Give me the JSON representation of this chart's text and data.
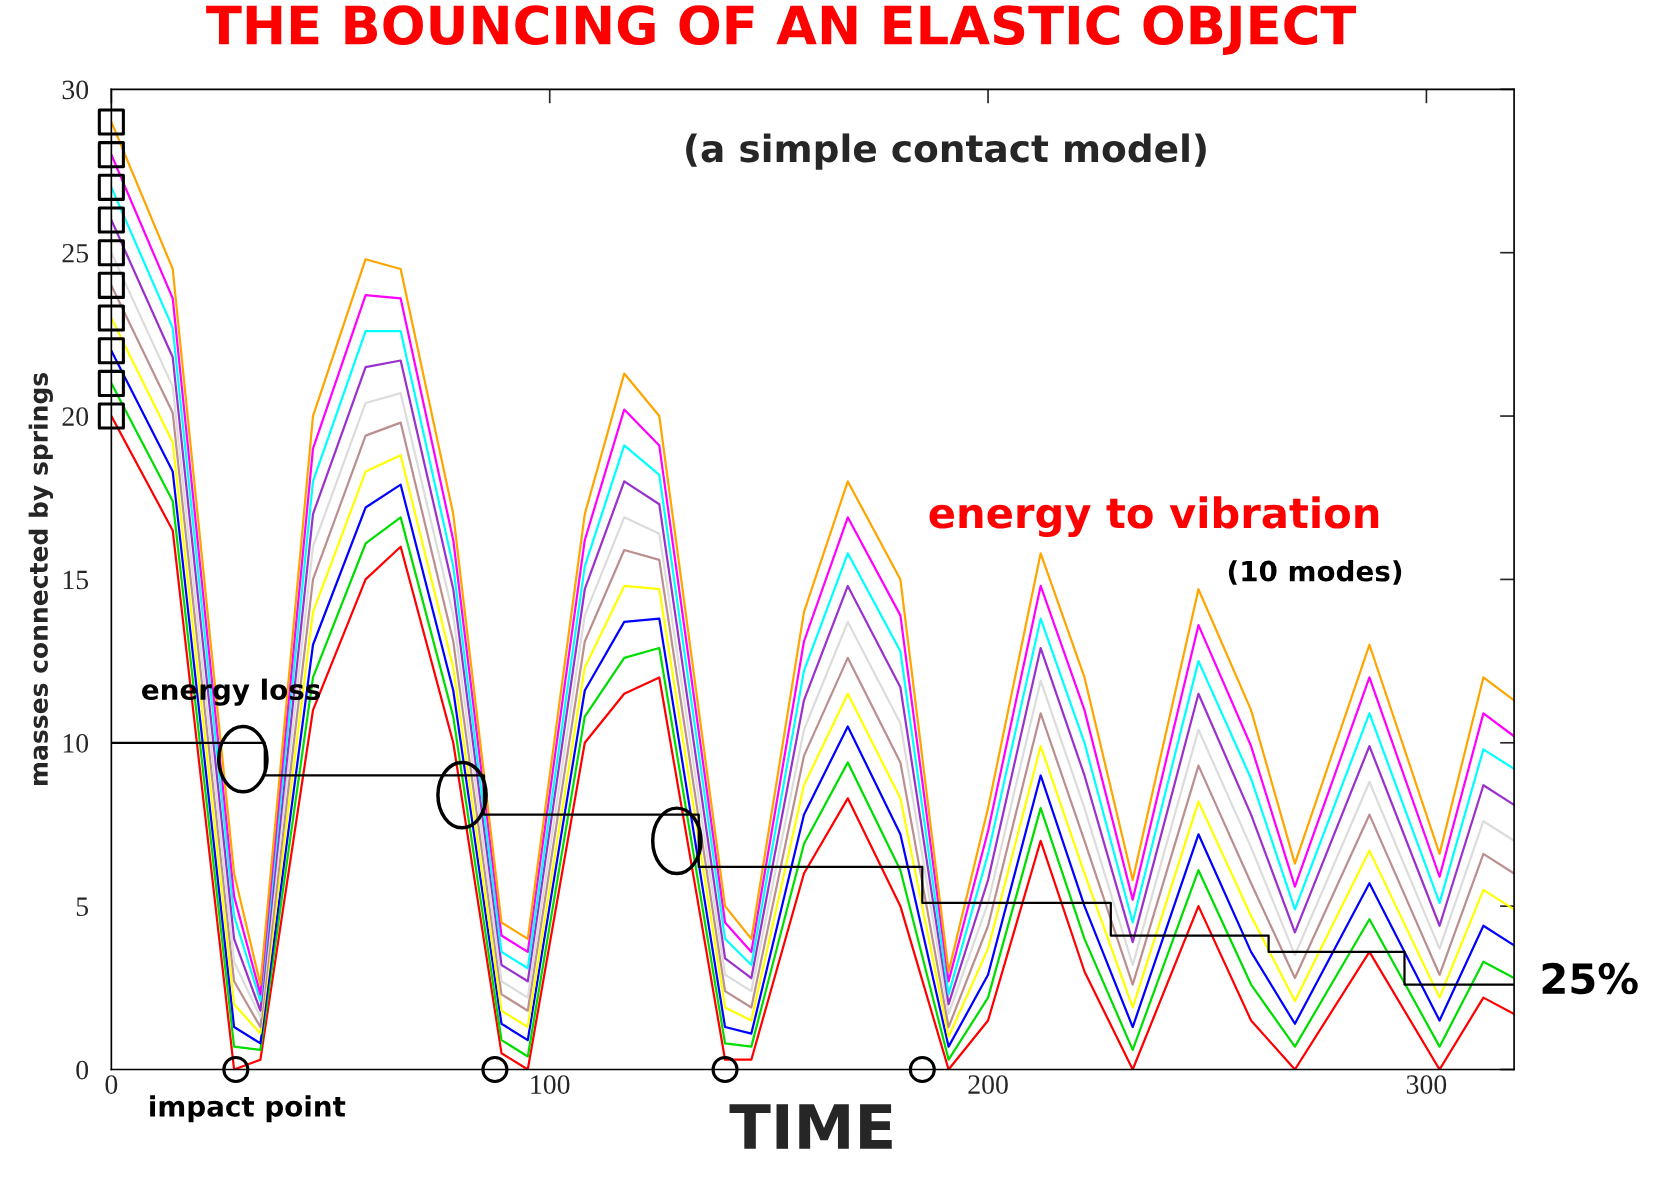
{
  "chart_data": {
    "type": "line",
    "title": "THE BOUNCING OF AN ELASTIC OBJECT",
    "subtitle": "(a simple contact model)",
    "xlabel": "TIME",
    "ylabel": "masses connected by springs",
    "annotations": [
      "energy loss",
      "energy to vibration",
      "(10 modes)",
      "25%",
      "impact point"
    ],
    "x": [
      0,
      14,
      28,
      34,
      46,
      58,
      66,
      78,
      89,
      95,
      108,
      117,
      125,
      140,
      146,
      158,
      168,
      180,
      191,
      200,
      212,
      222,
      233,
      248,
      260,
      270,
      287,
      303,
      313,
      320
    ],
    "xlim": [
      0,
      320
    ],
    "ylim": [
      0,
      30
    ],
    "xticks": [
      0,
      100,
      200,
      300
    ],
    "yticks": [
      0,
      5,
      10,
      15,
      20,
      25,
      30
    ],
    "grid": false,
    "legend": false,
    "series": [
      {
        "color": "#ff0000",
        "values": [
          20,
          16.5,
          0,
          0.3,
          11,
          15,
          16,
          10,
          0.5,
          0,
          10,
          11.5,
          12,
          0.3,
          0.3,
          6,
          8.3,
          5,
          0,
          1.5,
          7,
          3,
          0,
          5,
          1.5,
          0,
          3.6,
          0,
          2.2,
          1.7
        ]
      },
      {
        "color": "#00dd00",
        "values": [
          21,
          17.4,
          0.7,
          0.6,
          12,
          16.1,
          16.9,
          10.8,
          0.9,
          0.4,
          10.8,
          12.6,
          12.9,
          0.8,
          0.7,
          6.9,
          9.4,
          6.1,
          0.3,
          2.2,
          8,
          4,
          0.6,
          6.1,
          2.6,
          0.7,
          4.6,
          0.7,
          3.3,
          2.8
        ]
      },
      {
        "color": "#0000ff",
        "values": [
          22,
          18.3,
          1.3,
          0.8,
          13,
          17.2,
          17.9,
          11.6,
          1.4,
          0.9,
          11.6,
          13.7,
          13.8,
          1.3,
          1.1,
          7.8,
          10.5,
          7.2,
          0.7,
          2.9,
          9,
          5,
          1.3,
          7.2,
          3.6,
          1.4,
          5.7,
          1.5,
          4.4,
          3.8
        ]
      },
      {
        "color": "#ffff00",
        "values": [
          23,
          19.2,
          2.0,
          1.1,
          14,
          18.3,
          18.8,
          12.3,
          1.8,
          1.3,
          12.3,
          14.8,
          14.7,
          1.9,
          1.5,
          8.7,
          11.5,
          8.3,
          1,
          3.7,
          9.9,
          6,
          1.9,
          8.2,
          4.7,
          2.1,
          6.7,
          2.2,
          5.5,
          4.9
        ]
      },
      {
        "color": "#bc8f8f",
        "values": [
          24,
          20.1,
          2.7,
          1.3,
          15,
          19.4,
          19.8,
          13.1,
          2.3,
          1.8,
          13.1,
          15.9,
          15.6,
          2.4,
          1.9,
          9.6,
          12.6,
          9.4,
          1.3,
          4.4,
          10.9,
          7,
          2.6,
          9.3,
          5.7,
          2.8,
          7.8,
          2.9,
          6.6,
          6
        ]
      },
      {
        "color": "#dcdcdc",
        "values": [
          25,
          20.9,
          3.3,
          1.6,
          16,
          20.4,
          20.7,
          13.9,
          2.7,
          2.2,
          13.9,
          16.9,
          16.4,
          2.9,
          2.4,
          10.4,
          13.7,
          10.6,
          1.7,
          5.1,
          11.9,
          8,
          3.2,
          10.4,
          6.8,
          3.5,
          8.8,
          3.7,
          7.6,
          7
        ]
      },
      {
        "color": "#9932cc",
        "values": [
          26,
          21.8,
          4.0,
          1.8,
          17,
          21.5,
          21.7,
          14.7,
          3.2,
          2.7,
          14.7,
          18.0,
          17.3,
          3.4,
          2.8,
          11.3,
          14.8,
          11.7,
          2,
          5.8,
          12.9,
          9,
          3.9,
          11.5,
          7.8,
          4.2,
          9.9,
          4.4,
          8.7,
          8.1
        ]
      },
      {
        "color": "#00ffff",
        "values": [
          27,
          22.7,
          4.7,
          2.1,
          18,
          22.6,
          22.6,
          15.4,
          3.6,
          3.1,
          15.4,
          19.1,
          18.2,
          4.0,
          3.2,
          12.2,
          15.8,
          12.8,
          2.3,
          6.6,
          13.8,
          10,
          4.5,
          12.5,
          8.9,
          4.9,
          10.9,
          5.1,
          9.8,
          9.2
        ]
      },
      {
        "color": "#ff00ff",
        "values": [
          28,
          23.6,
          5.3,
          2.3,
          19,
          23.7,
          23.6,
          16.2,
          4.1,
          3.6,
          16.2,
          20.2,
          19.1,
          4.5,
          3.6,
          13.1,
          16.9,
          13.9,
          2.7,
          7.3,
          14.8,
          11,
          5.2,
          13.6,
          9.9,
          5.6,
          12,
          5.9,
          10.9,
          10.2
        ]
      },
      {
        "color": "#ffa500",
        "values": [
          29,
          24.5,
          6,
          2.6,
          20,
          24.8,
          24.5,
          17,
          4.5,
          4,
          17,
          21.3,
          20,
          5,
          4,
          14,
          18,
          15,
          3,
          8,
          15.8,
          12,
          5.8,
          14.7,
          11,
          6.3,
          13,
          6.6,
          12,
          11.3
        ]
      },
      {
        "type": "step",
        "color": "#000000",
        "x": [
          0,
          35,
          85,
          134,
          185,
          228,
          264,
          295,
          320
        ],
        "values": [
          10,
          9,
          7.8,
          6.2,
          5.1,
          4.1,
          3.6,
          2.6,
          2.6
        ]
      },
      {
        "type": "scatter",
        "marker": "square",
        "color": "#000000",
        "x": [
          0,
          0,
          0,
          0,
          0,
          0,
          0,
          0,
          0,
          0
        ],
        "values": [
          20,
          21,
          22,
          23,
          24,
          25,
          26,
          27,
          28,
          29
        ]
      },
      {
        "type": "scatter",
        "marker": "circle",
        "color": "#000000",
        "x": [
          28.4,
          87.5,
          140,
          185
        ],
        "values": [
          0,
          0,
          0,
          0
        ]
      }
    ]
  }
}
